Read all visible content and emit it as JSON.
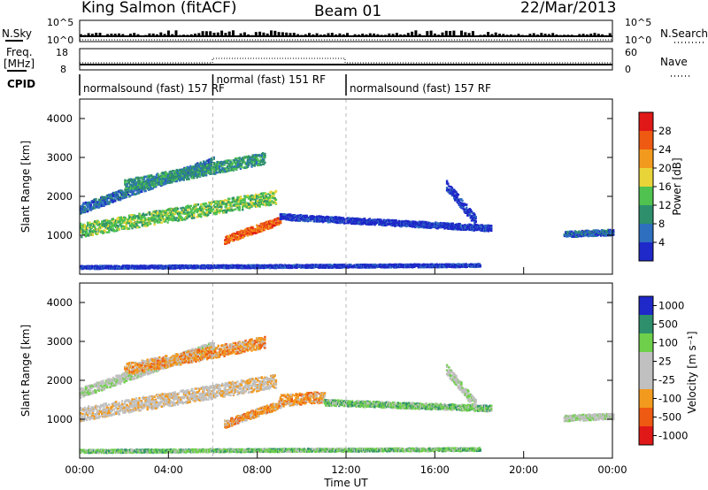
{
  "header": {
    "station": "King Salmon (fitACF)",
    "beam": "Beam 01",
    "date": "22/Mar/2013"
  },
  "strips": {
    "nsky": {
      "label": "N.Sky",
      "tick_top": "10^5",
      "tick_bottom": "10^0"
    },
    "nsearch": {
      "label": "N.Search",
      "tick_top": "10^5",
      "tick_bottom": "10^0"
    },
    "freq": {
      "label_line1": "Freq.",
      "label_line2": "[MHz]",
      "tick_top": "18",
      "tick_bottom": "8"
    },
    "nave": {
      "label": "Nave",
      "tick_top": "60",
      "tick_bottom": "0"
    },
    "cpid": {
      "label": "CPID",
      "segments": [
        {
          "text": "normalsound (fast) 157 RF",
          "start_h": 0.0,
          "end_h": 6.0
        },
        {
          "text": "normal (fast) 151 RF",
          "start_h": 6.0,
          "end_h": 12.0
        },
        {
          "text": "normalsound (fast) 157 RF",
          "start_h": 12.0,
          "end_h": 24.0
        }
      ]
    }
  },
  "colors": {
    "power": [
      "#1f28c8",
      "#2e6fc0",
      "#2e8f6c",
      "#4fc24f",
      "#e8d438",
      "#f29a1e",
      "#ee5a12",
      "#e01818"
    ],
    "velocity": [
      "#e01818",
      "#ee5a12",
      "#f29a1e",
      "#c0c0c0",
      "#c0c0c0",
      "#6ed04a",
      "#2e8f6c",
      "#1f28c8"
    ]
  },
  "chart_data": [
    {
      "type": "heatmap",
      "title": "",
      "panel": "power",
      "xlabel": "Time UT",
      "ylabel": "Slant Range [km]",
      "xlim": [
        0,
        24
      ],
      "ylim": [
        0,
        4500
      ],
      "x_ticks": [
        "00:00",
        "04:00",
        "08:00",
        "12:00",
        "16:00",
        "20:00",
        "00:00"
      ],
      "y_ticks": [
        1000,
        2000,
        3000,
        4000
      ],
      "colorbar": {
        "label": "Power [dB]",
        "ticks": [
          "4",
          "8",
          "12",
          "16",
          "20",
          "24",
          "28"
        ],
        "range": [
          0,
          30
        ]
      },
      "grid": false,
      "features": [
        {
          "start_h": 0.0,
          "end_h": 8.8,
          "range_start_km": 1150,
          "range_end_km": 2000,
          "thickness_km": 350,
          "level": 3
        },
        {
          "start_h": 0.0,
          "end_h": 6.0,
          "range_start_km": 1700,
          "range_end_km": 2900,
          "thickness_km": 250,
          "level": 1
        },
        {
          "start_h": 2.0,
          "end_h": 8.3,
          "range_start_km": 2300,
          "range_end_km": 3000,
          "thickness_km": 300,
          "level": 2
        },
        {
          "start_h": 6.5,
          "end_h": 9.0,
          "range_start_km": 900,
          "range_end_km": 1400,
          "thickness_km": 200,
          "level": 6
        },
        {
          "start_h": 9.0,
          "end_h": 18.5,
          "range_start_km": 1500,
          "range_end_km": 1200,
          "thickness_km": 150,
          "level": 0
        },
        {
          "start_h": 16.5,
          "end_h": 17.8,
          "range_start_km": 2300,
          "range_end_km": 1400,
          "thickness_km": 250,
          "level": 0
        },
        {
          "start_h": 21.8,
          "end_h": 24.0,
          "range_start_km": 1050,
          "range_end_km": 1100,
          "thickness_km": 150,
          "level": 1
        },
        {
          "start_h": 0.0,
          "end_h": 18.0,
          "range_start_km": 200,
          "range_end_km": 250,
          "thickness_km": 80,
          "level": 0
        }
      ]
    },
    {
      "type": "heatmap",
      "title": "",
      "panel": "velocity",
      "xlabel": "Time UT",
      "ylabel": "Slant Range [km]",
      "xlim": [
        0,
        24
      ],
      "ylim": [
        0,
        4500
      ],
      "x_ticks": [
        "00:00",
        "04:00",
        "08:00",
        "12:00",
        "16:00",
        "20:00",
        "00:00"
      ],
      "y_ticks": [
        1000,
        2000,
        3000,
        4000
      ],
      "colorbar": {
        "label": "Velocity [m s⁻¹]",
        "ticks": [
          "1000",
          "500",
          "100",
          "25",
          "-25",
          "-100",
          "-500",
          "-1000"
        ]
      },
      "grid": false,
      "features": [
        {
          "start_h": 0.0,
          "end_h": 8.8,
          "range_start_km": 1150,
          "range_end_km": 2000,
          "thickness_km": 350,
          "level": 3
        },
        {
          "start_h": 0.0,
          "end_h": 6.0,
          "range_start_km": 1700,
          "range_end_km": 2900,
          "thickness_km": 250,
          "level": 4
        },
        {
          "start_h": 2.0,
          "end_h": 8.3,
          "range_start_km": 2300,
          "range_end_km": 3000,
          "thickness_km": 300,
          "level": 2
        },
        {
          "start_h": 6.5,
          "end_h": 9.0,
          "range_start_km": 900,
          "range_end_km": 1400,
          "thickness_km": 200,
          "level": 2
        },
        {
          "start_h": 9.0,
          "end_h": 11.0,
          "range_start_km": 1500,
          "range_end_km": 1600,
          "thickness_km": 300,
          "level": 2
        },
        {
          "start_h": 11.0,
          "end_h": 18.5,
          "range_start_km": 1450,
          "range_end_km": 1300,
          "thickness_km": 150,
          "level": 5
        },
        {
          "start_h": 16.5,
          "end_h": 17.8,
          "range_start_km": 2300,
          "range_end_km": 1400,
          "thickness_km": 250,
          "level": 4
        },
        {
          "start_h": 21.8,
          "end_h": 24.0,
          "range_start_km": 1050,
          "range_end_km": 1100,
          "thickness_km": 150,
          "level": 4
        },
        {
          "start_h": 0.0,
          "end_h": 18.0,
          "range_start_km": 200,
          "range_end_km": 250,
          "thickness_km": 80,
          "level": 5
        }
      ]
    }
  ]
}
